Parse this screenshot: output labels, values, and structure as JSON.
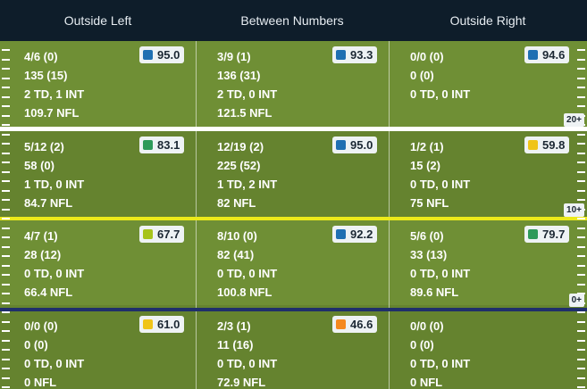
{
  "columns": [
    "Outside Left",
    "Between Numbers",
    "Outside Right"
  ],
  "yard_labels": [
    "20+",
    "10+",
    "0+"
  ],
  "colors": {
    "header_bg": "#0e1d2a",
    "blue": "#1f6fb2",
    "green": "#2e9a5a",
    "yellow": "#f0c419",
    "lime": "#a7c31b",
    "orange": "#f5891f"
  },
  "rows": [
    [
      {
        "comp": "4/6 (0)",
        "yards": "135 (15)",
        "td": "2 TD, 1 INT",
        "rating": "109.7 NFL",
        "grade": "95.0",
        "grade_color": "blue"
      },
      {
        "comp": "3/9 (1)",
        "yards": "136 (31)",
        "td": "2 TD, 0 INT",
        "rating": "121.5 NFL",
        "grade": "93.3",
        "grade_color": "blue"
      },
      {
        "comp": "0/0 (0)",
        "yards": "0 (0)",
        "td": "0 TD, 0 INT",
        "rating": "",
        "grade": "94.6",
        "grade_color": "blue"
      }
    ],
    [
      {
        "comp": "5/12 (2)",
        "yards": "58 (0)",
        "td": "1 TD, 0 INT",
        "rating": "84.7 NFL",
        "grade": "83.1",
        "grade_color": "green"
      },
      {
        "comp": "12/19 (2)",
        "yards": "225 (52)",
        "td": "1 TD, 2 INT",
        "rating": "82 NFL",
        "grade": "95.0",
        "grade_color": "blue"
      },
      {
        "comp": "1/2 (1)",
        "yards": "15 (2)",
        "td": "0 TD, 0 INT",
        "rating": "75 NFL",
        "grade": "59.8",
        "grade_color": "yellow"
      }
    ],
    [
      {
        "comp": "4/7 (1)",
        "yards": "28 (12)",
        "td": "0 TD, 0 INT",
        "rating": "66.4 NFL",
        "grade": "67.7",
        "grade_color": "lime"
      },
      {
        "comp": "8/10 (0)",
        "yards": "82 (41)",
        "td": "0 TD, 0 INT",
        "rating": "100.8 NFL",
        "grade": "92.2",
        "grade_color": "blue"
      },
      {
        "comp": "5/6 (0)",
        "yards": "33 (13)",
        "td": "0 TD, 0 INT",
        "rating": "89.6 NFL",
        "grade": "79.7",
        "grade_color": "green"
      }
    ],
    [
      {
        "comp": "0/0 (0)",
        "yards": "0 (0)",
        "td": "0 TD, 0 INT",
        "rating": "0 NFL",
        "grade": "61.0",
        "grade_color": "yellow"
      },
      {
        "comp": "2/3 (1)",
        "yards": "11 (16)",
        "td": "0 TD, 0 INT",
        "rating": "72.9 NFL",
        "grade": "46.6",
        "grade_color": "orange"
      },
      {
        "comp": "0/0 (0)",
        "yards": "0 (0)",
        "td": "0 TD, 0 INT",
        "rating": "0 NFL",
        "grade": "",
        "grade_color": ""
      }
    ]
  ]
}
